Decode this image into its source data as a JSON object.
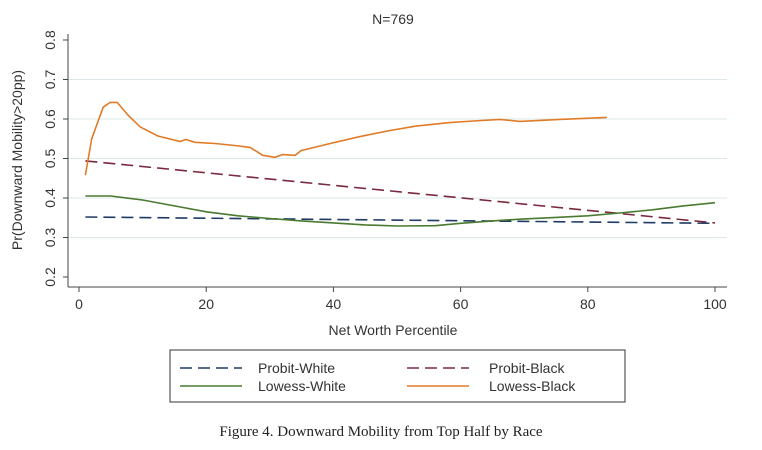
{
  "chart_data": {
    "type": "line",
    "title": "N=769",
    "xlabel": "Net Worth Percentile",
    "ylabel": "Pr(Downward Mobility>20pp)",
    "xlim": [
      0,
      100
    ],
    "ylim": [
      0.2,
      0.8
    ],
    "xticks": [
      "0",
      "20",
      "40",
      "60",
      "80",
      "100"
    ],
    "yticks": [
      "0.2",
      "0.3",
      "0.4",
      "0.5",
      "0.6",
      "0.7",
      "0.8"
    ],
    "grid": true,
    "legend_position": "bottom",
    "caption": "Figure 4.  Downward Mobility from Top Half by Race",
    "series": [
      {
        "name": "Probit-White",
        "color": "#1f3b66",
        "dash": true,
        "x": [
          1,
          100
        ],
        "y": [
          0.352,
          0.336
        ]
      },
      {
        "name": "Probit-Black",
        "color": "#7a2a3e",
        "dash": true,
        "x": [
          1,
          100
        ],
        "y": [
          0.494,
          0.337
        ]
      },
      {
        "name": "Lowess-White",
        "color": "#4a7a30",
        "dash": false,
        "x": [
          1,
          5,
          10,
          15,
          20,
          25,
          30,
          35,
          40,
          45,
          50,
          56,
          60,
          65,
          70,
          75,
          80,
          85,
          90,
          95,
          100
        ],
        "y": [
          0.405,
          0.405,
          0.395,
          0.38,
          0.365,
          0.355,
          0.348,
          0.342,
          0.337,
          0.332,
          0.329,
          0.33,
          0.336,
          0.342,
          0.347,
          0.351,
          0.355,
          0.362,
          0.37,
          0.38,
          0.388
        ]
      },
      {
        "name": "Lowess-Black",
        "color": "#e07b28",
        "dash": false,
        "x": [
          1,
          2,
          3.8,
          4.9,
          6,
          7.7,
          9.6,
          12.4,
          15.9,
          16.8,
          18.2,
          21.4,
          24.5,
          26.9,
          28.9,
          30.8,
          32,
          34,
          34.9,
          39.5,
          44,
          48.9,
          53,
          58.3,
          62,
          66.2,
          69.3,
          75.6,
          83
        ],
        "y": [
          0.458,
          0.55,
          0.63,
          0.642,
          0.642,
          0.61,
          0.58,
          0.557,
          0.543,
          0.548,
          0.541,
          0.538,
          0.533,
          0.528,
          0.508,
          0.503,
          0.51,
          0.508,
          0.52,
          0.538,
          0.555,
          0.571,
          0.582,
          0.591,
          0.595,
          0.599,
          0.594,
          0.599,
          0.604
        ]
      }
    ]
  }
}
